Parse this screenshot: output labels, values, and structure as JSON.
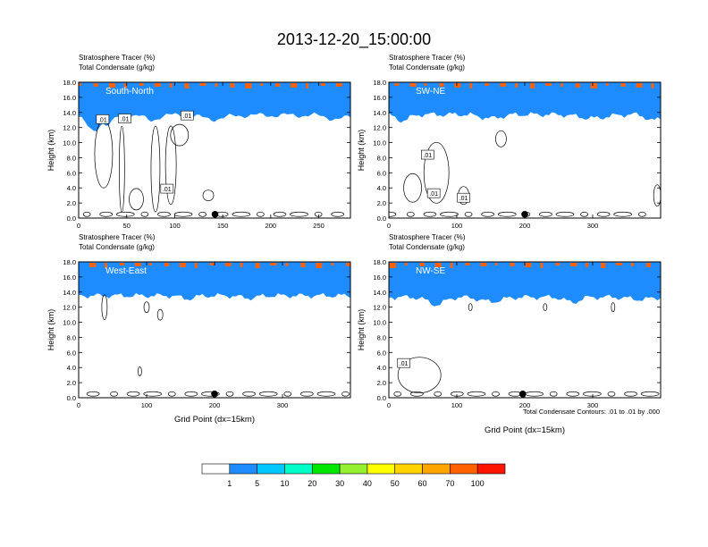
{
  "title": "2013-12-20_15:00:00",
  "colorbar": {
    "colors": [
      "#ffffff",
      "#1e8cff",
      "#00c8ff",
      "#00ffc8",
      "#00e600",
      "#96f032",
      "#ffff00",
      "#ffd200",
      "#ffa500",
      "#ff6000",
      "#ff1400"
    ],
    "labels": [
      "1",
      "5",
      "10",
      "20",
      "30",
      "40",
      "50",
      "60",
      "70",
      "100"
    ]
  },
  "footnote": "Total Condensate Contours: .01 to .01 by .000",
  "chart_data": [
    {
      "type": "heatmap",
      "panel": "top-left",
      "label_line1": "Stratosphere Tracer   (%)",
      "label_line2": "Total Condensate   (g/kg)",
      "direction": "South-North",
      "ylabel": "Height (km)",
      "xlabel": "",
      "xlim": [
        0,
        283
      ],
      "ylim": [
        0,
        18
      ],
      "xticks": [
        "0",
        "50",
        "100",
        "150",
        "200",
        "250"
      ],
      "xtick_values": [
        0,
        50,
        100,
        150,
        200,
        250
      ],
      "yticks": [
        "0.0",
        "2.0",
        "4.0",
        "6.0",
        "8.0",
        "10.0",
        "12.0",
        "14.0",
        "16.0",
        "18.0"
      ],
      "base_height_km": 15.3,
      "dips": [
        [
          15,
          13.2,
          7
        ],
        [
          30,
          14.0,
          6
        ],
        [
          75,
          14.6,
          6
        ],
        [
          140,
          14.8,
          12
        ],
        [
          270,
          14.8,
          10
        ]
      ],
      "contour_labels": [
        ".01",
        ".01",
        ".01",
        ".01"
      ],
      "contour_label_pos": [
        [
          25,
          13.1
        ],
        [
          48,
          13.2
        ],
        [
          113,
          13.6
        ],
        [
          92,
          3.9
        ]
      ],
      "marker_x": 142
    },
    {
      "type": "heatmap",
      "panel": "top-right",
      "label_line1": "Stratosphere Tracer   (%)",
      "label_line2": "Total Condensate   (g/kg)",
      "direction": "SW-NE",
      "ylabel": "Height (km)",
      "xlabel": "",
      "xlim": [
        0,
        400
      ],
      "ylim": [
        0,
        18
      ],
      "xticks": [
        "0",
        "100",
        "200",
        "300"
      ],
      "xtick_values": [
        0,
        100,
        200,
        300
      ],
      "yticks": [
        "0.0",
        "2.0",
        "4.0",
        "6.0",
        "8.0",
        "10.0",
        "12.0",
        "14.0",
        "16.0",
        "18.0"
      ],
      "base_height_km": 15.4,
      "dips": [
        [
          20,
          14.6,
          10
        ],
        [
          150,
          14.9,
          15
        ],
        [
          300,
          14.9,
          20
        ],
        [
          390,
          14.6,
          10
        ]
      ],
      "contour_labels": [
        ".01",
        ".01",
        ".01"
      ],
      "contour_label_pos": [
        [
          57,
          8.4
        ],
        [
          66,
          3.3
        ],
        [
          110,
          2.7
        ]
      ],
      "marker_x": 200
    },
    {
      "type": "heatmap",
      "panel": "bottom-left",
      "label_line1": "Stratosphere Tracer   (%)",
      "label_line2": "Total Condensate   (g/kg)",
      "direction": "West-East",
      "ylabel": "Height (km)",
      "xlabel": "Grid Point (dx=15km)",
      "xlim": [
        0,
        400
      ],
      "ylim": [
        0,
        18
      ],
      "xticks": [
        "0",
        "100",
        "200",
        "300"
      ],
      "xtick_values": [
        0,
        100,
        200,
        300
      ],
      "yticks": [
        "0.0",
        "2.0",
        "4.0",
        "6.0",
        "8.0",
        "10.0",
        "12.0",
        "14.0",
        "16.0",
        "18.0"
      ],
      "base_height_km": 15.2,
      "dips": [
        [
          160,
          14.8,
          10
        ],
        [
          250,
          14.9,
          12
        ]
      ],
      "contour_labels": [],
      "contour_label_pos": [],
      "marker_x": 200
    },
    {
      "type": "heatmap",
      "panel": "bottom-right",
      "label_line1": "Stratosphere Tracer   (%)",
      "label_line2": "Total Condensate   (g/kg)",
      "direction": "NW-SE",
      "ylabel": "Height (km)",
      "xlabel": "Grid Point (dx=15km)",
      "xlim": [
        0,
        400
      ],
      "ylim": [
        0,
        18
      ],
      "xticks": [
        "0",
        "100",
        "200",
        "300"
      ],
      "xtick_values": [
        0,
        100,
        200,
        300
      ],
      "yticks": [
        "0.0",
        "2.0",
        "4.0",
        "6.0",
        "8.0",
        "10.0",
        "12.0",
        "14.0",
        "16.0",
        "18.0"
      ],
      "base_height_km": 15.0,
      "dips": [
        [
          70,
          14.0,
          12
        ],
        [
          150,
          14.4,
          15
        ],
        [
          270,
          14.3,
          10
        ],
        [
          370,
          14.7,
          15
        ]
      ],
      "contour_labels": [
        ".01"
      ],
      "contour_label_pos": [
        [
          22,
          4.6
        ]
      ],
      "marker_x": 197
    }
  ]
}
